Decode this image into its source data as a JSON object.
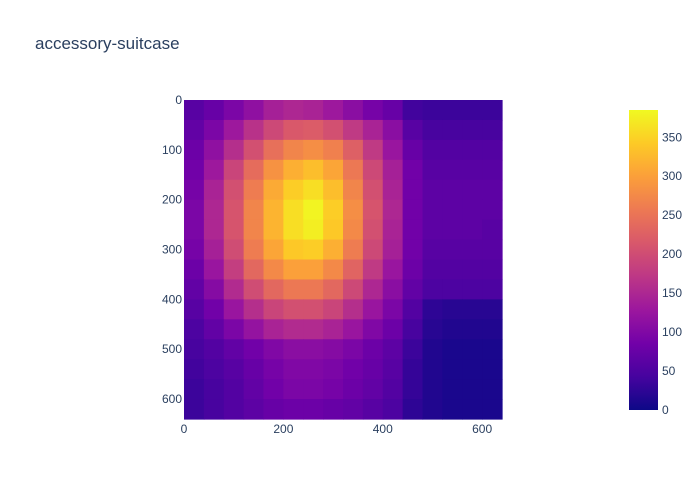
{
  "chart_data": {
    "type": "heatmap",
    "title": "accessory-suitcase",
    "xlabel": "",
    "ylabel": "",
    "xlim": [
      0,
      640
    ],
    "ylim": [
      640,
      0
    ],
    "x_ticks": [
      0,
      200,
      400,
      600
    ],
    "y_ticks": [
      0,
      100,
      200,
      300,
      400,
      500,
      600
    ],
    "x_tick_labels": [
      "0",
      "200",
      "400",
      "600"
    ],
    "y_tick_labels": [
      "0",
      "100",
      "200",
      "300",
      "400",
      "500",
      "600"
    ],
    "grid_step": 40,
    "values": [
      [
        60,
        75,
        95,
        115,
        140,
        150,
        145,
        130,
        110,
        90,
        75,
        40,
        35,
        35,
        35,
        35
      ],
      [
        70,
        95,
        130,
        165,
        195,
        215,
        220,
        205,
        175,
        145,
        110,
        60,
        45,
        45,
        45,
        45
      ],
      [
        80,
        115,
        160,
        205,
        245,
        270,
        280,
        265,
        225,
        175,
        125,
        75,
        55,
        55,
        55,
        55
      ],
      [
        85,
        130,
        190,
        240,
        285,
        315,
        330,
        305,
        255,
        195,
        140,
        85,
        60,
        60,
        60,
        60
      ],
      [
        90,
        145,
        205,
        260,
        310,
        345,
        360,
        330,
        270,
        205,
        145,
        85,
        65,
        65,
        65,
        65
      ],
      [
        95,
        150,
        210,
        270,
        320,
        360,
        380,
        345,
        280,
        210,
        150,
        85,
        65,
        65,
        65,
        65
      ],
      [
        95,
        150,
        210,
        270,
        320,
        360,
        375,
        340,
        275,
        205,
        145,
        85,
        65,
        65,
        65,
        60
      ],
      [
        90,
        140,
        200,
        260,
        305,
        340,
        345,
        315,
        260,
        195,
        140,
        85,
        60,
        60,
        60,
        60
      ],
      [
        80,
        125,
        180,
        235,
        275,
        300,
        300,
        275,
        230,
        175,
        125,
        80,
        55,
        55,
        55,
        55
      ],
      [
        70,
        105,
        155,
        200,
        235,
        255,
        255,
        235,
        195,
        150,
        110,
        70,
        50,
        50,
        50,
        50
      ],
      [
        60,
        85,
        125,
        160,
        190,
        205,
        205,
        190,
        160,
        125,
        95,
        55,
        25,
        20,
        20,
        20
      ],
      [
        50,
        70,
        95,
        120,
        145,
        155,
        155,
        145,
        125,
        100,
        80,
        45,
        20,
        15,
        15,
        15
      ],
      [
        45,
        55,
        70,
        85,
        100,
        110,
        110,
        105,
        95,
        80,
        65,
        35,
        15,
        10,
        10,
        10
      ],
      [
        40,
        50,
        60,
        75,
        90,
        100,
        100,
        95,
        85,
        75,
        60,
        30,
        15,
        10,
        10,
        10
      ],
      [
        35,
        45,
        55,
        70,
        85,
        95,
        95,
        90,
        80,
        70,
        55,
        30,
        15,
        10,
        10,
        10
      ],
      [
        35,
        45,
        55,
        65,
        75,
        80,
        80,
        75,
        70,
        60,
        50,
        25,
        15,
        10,
        10,
        10
      ]
    ],
    "colorscale": [
      "#0d0887",
      "#46039f",
      "#7201a8",
      "#9c179e",
      "#bd3786",
      "#d8576b",
      "#ed7953",
      "#fb9f3a",
      "#fdca26",
      "#f0f921"
    ],
    "colorbar": {
      "min": 0,
      "max": 385,
      "ticks": [
        0,
        50,
        100,
        150,
        200,
        250,
        300,
        350
      ],
      "tick_labels": [
        "0",
        "50",
        "100",
        "150",
        "200",
        "250",
        "300",
        "350"
      ]
    },
    "legend": "none",
    "grid": false
  }
}
